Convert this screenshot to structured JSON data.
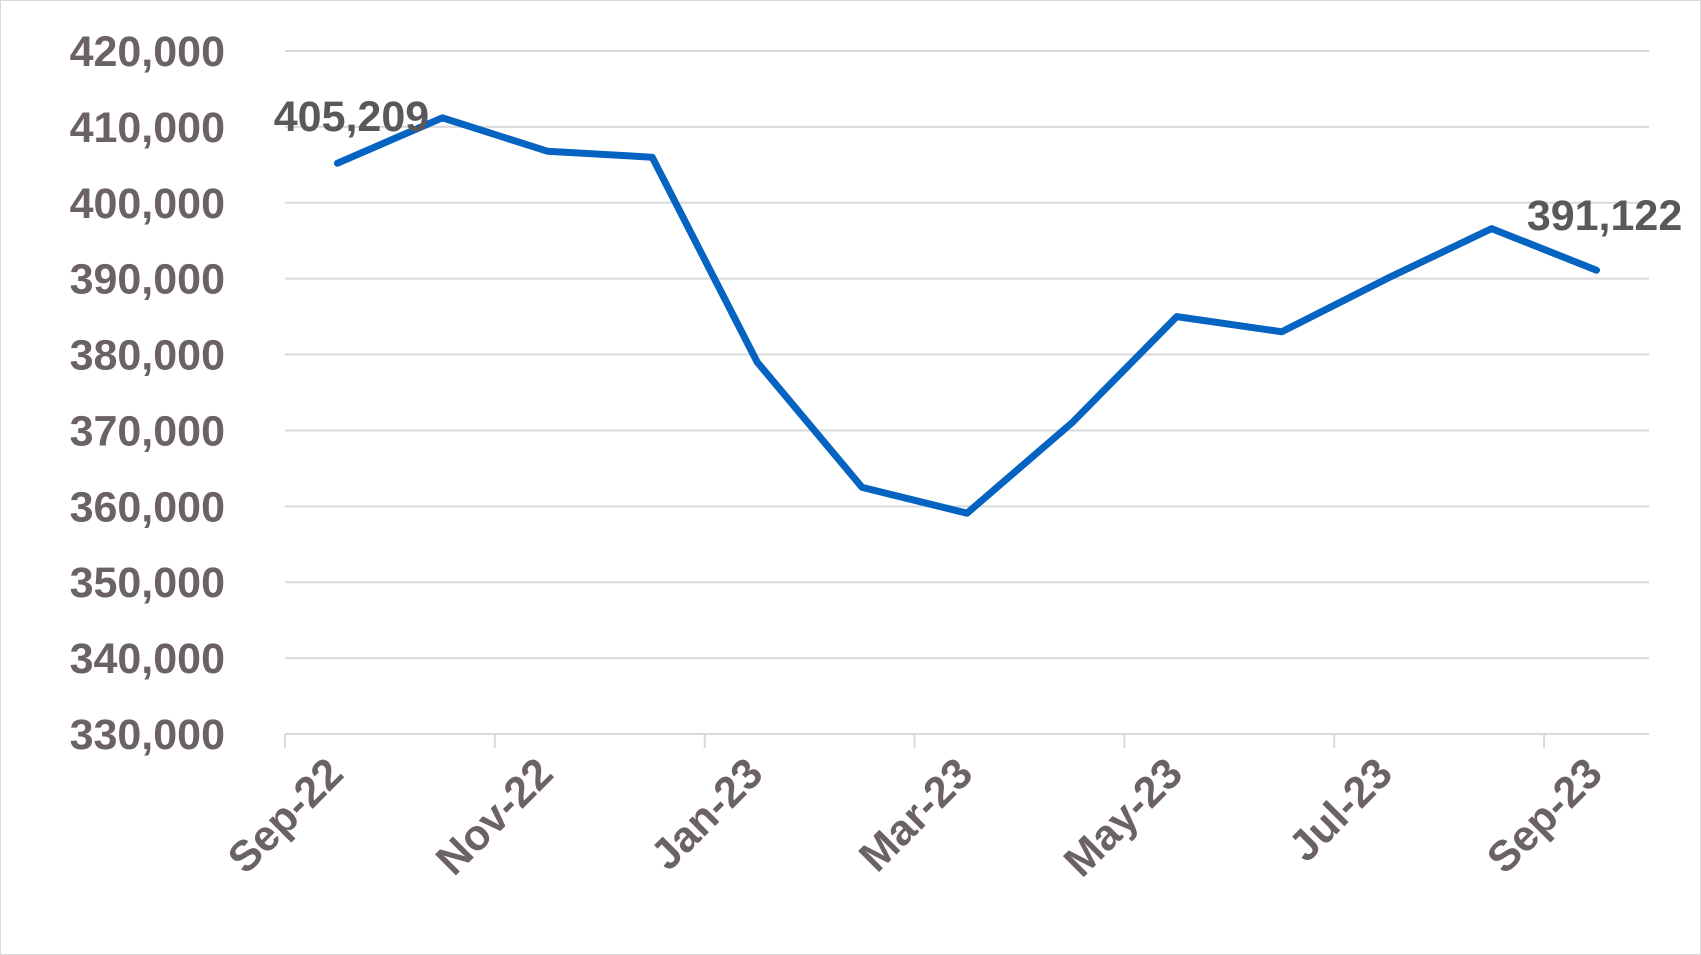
{
  "chart_data": {
    "type": "line",
    "title": "",
    "xlabel": "",
    "ylabel": "",
    "x": [
      "Sep-22",
      "Oct-22",
      "Nov-22",
      "Dec-22",
      "Jan-23",
      "Feb-23",
      "Mar-23",
      "Apr-23",
      "May-23",
      "Jun-23",
      "Jul-23",
      "Aug-23",
      "Sep-23"
    ],
    "x_tick_labels": [
      "Sep-22",
      "Nov-22",
      "Jan-23",
      "Mar-23",
      "May-23",
      "Jul-23",
      "Sep-23"
    ],
    "series": [
      {
        "values": [
          405209,
          411200,
          406800,
          406000,
          379000,
          362500,
          359100,
          371000,
          385000,
          383000,
          390000,
          396600,
          391122
        ]
      }
    ],
    "ylim": [
      330000,
      420000
    ],
    "y_ticks": [
      330000,
      340000,
      350000,
      360000,
      370000,
      380000,
      390000,
      400000,
      410000,
      420000
    ],
    "y_tick_labels": [
      "330,000",
      "340,000",
      "350,000",
      "360,000",
      "370,000",
      "380,000",
      "390,000",
      "400,000",
      "410,000",
      "420,000"
    ],
    "data_labels": [
      {
        "index": 0,
        "text": "405,209"
      },
      {
        "index": 12,
        "text": "391,122"
      }
    ],
    "grid": true,
    "legend": "none",
    "colors": {
      "line": "#0563c1",
      "grid": "#d9d9d9",
      "axis": "#d9d9d9",
      "tick_text": "#6b6263"
    }
  }
}
